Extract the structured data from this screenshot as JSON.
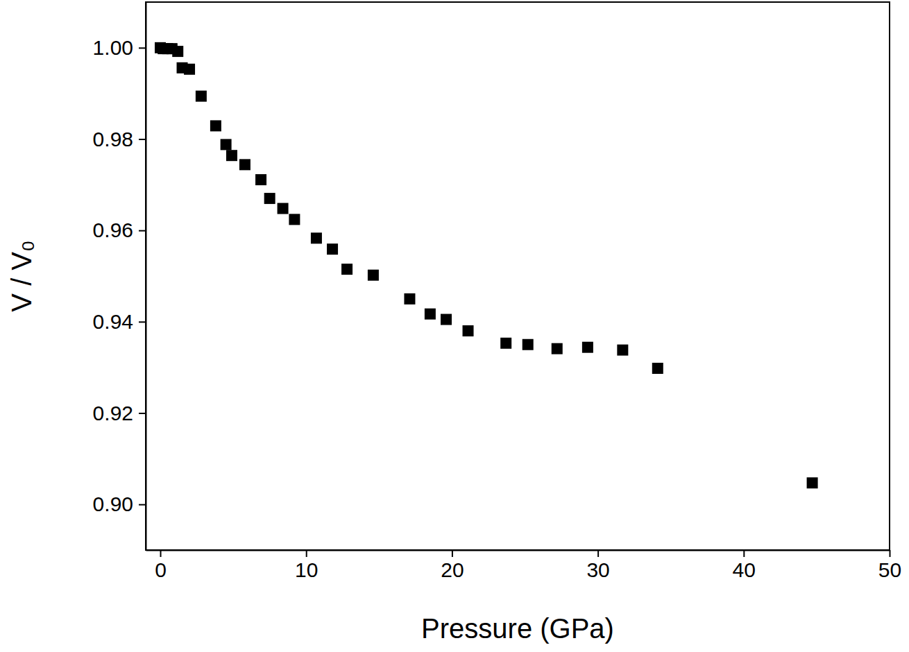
{
  "chart_data": {
    "type": "scatter",
    "x_label": "Pressure (GPa)",
    "y_label": "V / V₀",
    "marker": "square",
    "color": "#000000",
    "grid": false,
    "x": [
      0.0,
      0.2,
      0.5,
      0.8,
      1.2,
      1.5,
      2.0,
      2.8,
      3.8,
      4.5,
      4.9,
      5.8,
      6.9,
      7.5,
      8.4,
      9.2,
      10.7,
      11.8,
      12.8,
      14.6,
      17.1,
      18.5,
      19.6,
      21.1,
      23.7,
      25.2,
      27.2,
      29.3,
      31.7,
      34.1,
      44.7
    ],
    "values": [
      1.0,
      0.9998,
      0.9998,
      0.9998,
      0.9992,
      0.9956,
      0.9953,
      0.9894,
      0.9829,
      0.9788,
      0.9764,
      0.9744,
      0.9711,
      0.967,
      0.9648,
      0.9624,
      0.9583,
      0.9559,
      0.9515,
      0.9502,
      0.945,
      0.9417,
      0.9405,
      0.938,
      0.9353,
      0.935,
      0.9341,
      0.9344,
      0.9338,
      0.9298,
      0.9047
    ],
    "xlim": [
      -1,
      50
    ],
    "xticks": [
      0,
      10,
      20,
      30,
      40,
      50
    ],
    "ylim": [
      0.89,
      1.01
    ],
    "yticks": [
      {
        "value": 0.9,
        "label": "0.90"
      },
      0.92,
      0.94,
      0.96,
      0.98,
      {
        "value": 1.0,
        "label": "1.00"
      }
    ]
  }
}
